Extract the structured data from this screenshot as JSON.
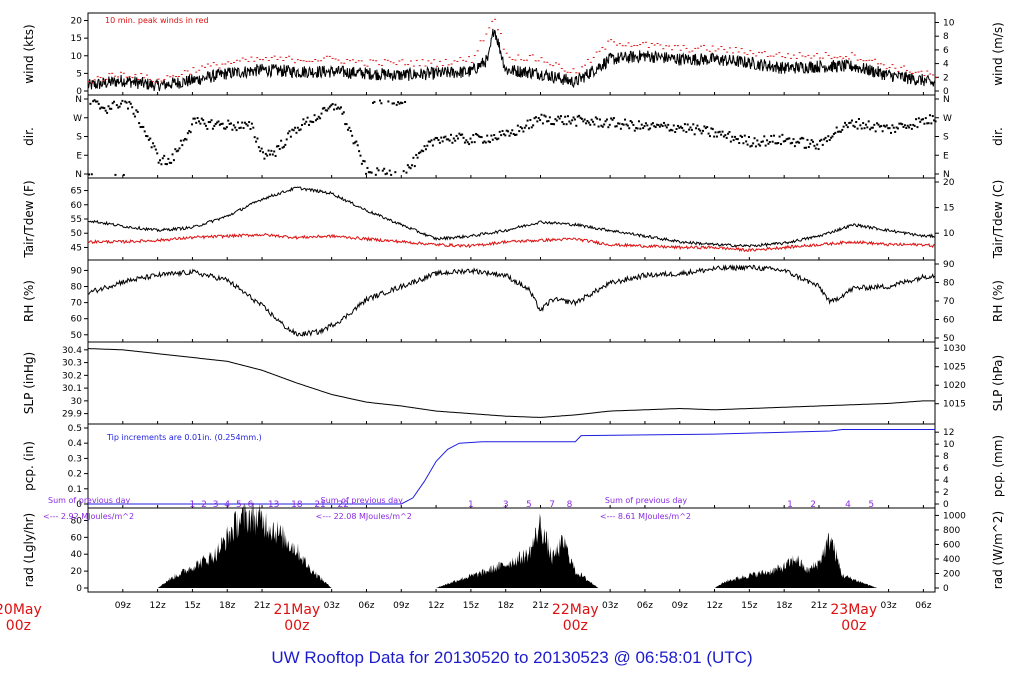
{
  "title": "UW Rooftop Data for 20130520  to  20130523 @ 06:58:01  (UTC)",
  "colors": {
    "black": "#000000",
    "red": "#dd1111",
    "blue": "#1f1fe0",
    "purple": "#8a2be2",
    "title": "#1c1ccc"
  },
  "time_axis": {
    "start": "2013-05-20 06:00",
    "end": "2013-05-23 07:00",
    "hour_ticks": [
      {
        "hour": 9,
        "label": "09z"
      },
      {
        "hour": 12,
        "label": "12z"
      },
      {
        "hour": 15,
        "label": "15z"
      },
      {
        "hour": 18,
        "label": "18z"
      },
      {
        "hour": 21,
        "label": "21z"
      },
      {
        "hour": 27,
        "label": "03z"
      },
      {
        "hour": 30,
        "label": "06z"
      },
      {
        "hour": 33,
        "label": "09z"
      },
      {
        "hour": 36,
        "label": "12z"
      },
      {
        "hour": 39,
        "label": "15z"
      },
      {
        "hour": 42,
        "label": "18z"
      },
      {
        "hour": 45,
        "label": "21z"
      },
      {
        "hour": 51,
        "label": "03z"
      },
      {
        "hour": 54,
        "label": "06z"
      },
      {
        "hour": 57,
        "label": "09z"
      },
      {
        "hour": 60,
        "label": "12z"
      },
      {
        "hour": 63,
        "label": "15z"
      },
      {
        "hour": 66,
        "label": "18z"
      },
      {
        "hour": 69,
        "label": "21z"
      },
      {
        "hour": 75,
        "label": "03z"
      },
      {
        "hour": 78,
        "label": "06z"
      }
    ],
    "day_labels": [
      {
        "hour": 0,
        "day": "20May",
        "time": "00z"
      },
      {
        "hour": 24,
        "day": "21May",
        "time": "00z"
      },
      {
        "hour": 48,
        "day": "22May",
        "time": "00z"
      },
      {
        "hour": 72,
        "day": "23May",
        "time": "00z"
      }
    ]
  },
  "chart_data": [
    {
      "type": "line",
      "panel": "wind",
      "ylabel_left": "wind (kts)",
      "ylabel_right": "wind (m/s)",
      "ylim": [
        0,
        21
      ],
      "yticks_left": [
        0,
        5,
        10,
        15,
        20
      ],
      "yticks_right": [
        0,
        2,
        4,
        6,
        8,
        10
      ],
      "annotation": "10 min. peak winds in red",
      "series": [
        {
          "role": "mean",
          "color": "#000000",
          "x_hours": [
            6,
            9,
            12,
            15,
            18,
            21,
            24,
            27,
            30,
            33,
            36,
            39,
            40.5,
            41,
            42,
            45,
            48,
            51,
            54,
            57,
            60,
            63,
            66,
            69,
            72,
            75,
            78,
            79
          ],
          "values": [
            1.5,
            3,
            1.5,
            3,
            5,
            6,
            5.5,
            5.5,
            5,
            4.5,
            5,
            5.5,
            9,
            18,
            6,
            5,
            2.5,
            9,
            10,
            9,
            9,
            8,
            6.5,
            7,
            7,
            4.5,
            3,
            2
          ]
        },
        {
          "role": "peak",
          "color": "#dd1111",
          "x_hours": [
            6,
            9,
            12,
            15,
            18,
            21,
            24,
            27,
            30,
            33,
            36,
            39,
            41,
            42,
            45,
            48,
            51,
            54,
            57,
            60,
            63,
            66,
            69,
            72,
            75,
            78,
            79
          ],
          "values": [
            3,
            5,
            3,
            6,
            8,
            9,
            9,
            9,
            8,
            8,
            8,
            9,
            21,
            10,
            9,
            5,
            14,
            13,
            12,
            12,
            11,
            10,
            10,
            10,
            7,
            5,
            4
          ]
        }
      ]
    },
    {
      "type": "scatter",
      "panel": "dir.",
      "ylabel_left": "dir.",
      "ylabel_right": "dir.",
      "ylim": [
        0,
        360
      ],
      "ytick_labels": [
        "N",
        "E",
        "S",
        "W",
        "N"
      ],
      "series": [
        {
          "color": "#000000",
          "x_hours": [
            6,
            7.5,
            9,
            10,
            12,
            13,
            15,
            18,
            20,
            21,
            22,
            24,
            26,
            27.5,
            30,
            33,
            33.5,
            36,
            39,
            42,
            45,
            48,
            51,
            54,
            57,
            60,
            63,
            66,
            69,
            70,
            72,
            75,
            78,
            79
          ],
          "values": [
            350,
            320,
            355,
            300,
            80,
            60,
            250,
            240,
            230,
            100,
            110,
            230,
            290,
            340,
            10,
            0,
            30,
            180,
            170,
            190,
            270,
            260,
            250,
            230,
            230,
            200,
            160,
            170,
            140,
            200,
            250,
            220,
            260,
            270
          ]
        }
      ]
    },
    {
      "type": "line",
      "panel": "Tair/Tdew",
      "ylabel_left": "Tair/Tdew (F)",
      "ylabel_right": "Tair/Tdew (C)",
      "ylim": [
        42,
        68
      ],
      "yticks_left": [
        45,
        50,
        55,
        60,
        65
      ],
      "yticks_right": [
        10,
        15,
        20
      ],
      "series": [
        {
          "role": "Tair",
          "color": "#000000",
          "x_hours": [
            6,
            9,
            12,
            15,
            18,
            21,
            24,
            27,
            30,
            33,
            36,
            39,
            42,
            45,
            48,
            51,
            54,
            57,
            60,
            63,
            66,
            69,
            72,
            75,
            78,
            79
          ],
          "values": [
            54.5,
            52.5,
            51,
            52,
            56,
            62,
            66,
            64,
            58,
            53,
            48,
            49,
            51,
            54,
            53,
            51,
            49,
            47,
            46,
            45.5,
            46.5,
            49,
            53,
            51,
            49,
            49
          ]
        },
        {
          "role": "Tdew",
          "color": "#dd1111",
          "x_hours": [
            6,
            9,
            12,
            15,
            18,
            21,
            24,
            27,
            30,
            33,
            36,
            39,
            42,
            45,
            48,
            51,
            54,
            57,
            60,
            63,
            66,
            69,
            72,
            75,
            78,
            79
          ],
          "values": [
            47,
            47,
            47.5,
            48.5,
            49,
            49.5,
            48.5,
            49,
            48,
            47,
            46,
            45.5,
            47,
            47.5,
            48,
            46,
            45.5,
            45,
            45,
            44,
            45,
            46,
            47,
            46,
            46,
            45.5
          ]
        }
      ]
    },
    {
      "type": "line",
      "panel": "RH",
      "ylabel_left": "RH (%)",
      "ylabel_right": "RH (%)",
      "ylim": [
        48,
        94
      ],
      "yticks_left": [
        50,
        60,
        70,
        80,
        90
      ],
      "yticks_right": [
        50,
        60,
        70,
        80,
        90
      ],
      "series": [
        {
          "color": "#000000",
          "x_hours": [
            6,
            9,
            12,
            15,
            18,
            21,
            23,
            24,
            26,
            28,
            30,
            33,
            36,
            39,
            42,
            44,
            45,
            46,
            48,
            51,
            54,
            57,
            60,
            63,
            66,
            69,
            70,
            72,
            75,
            78,
            79
          ],
          "values": [
            76,
            83,
            87,
            89,
            84,
            68,
            55,
            50,
            52,
            60,
            72,
            80,
            88,
            90,
            87,
            78,
            65,
            72,
            70,
            82,
            87,
            88,
            91,
            92,
            90,
            80,
            70,
            79,
            80,
            86,
            87
          ]
        }
      ]
    },
    {
      "type": "line",
      "panel": "SLP",
      "ylabel_left": "SLP (inHg)",
      "ylabel_right": "SLP (hPa)",
      "ylim": [
        29.85,
        30.43
      ],
      "yticks_left": [
        29.9,
        30.0,
        30.1,
        30.2,
        30.3,
        30.4
      ],
      "yticks_right": [
        1015,
        1020,
        1025,
        1030
      ],
      "series": [
        {
          "color": "#000000",
          "x_hours": [
            6,
            9,
            12,
            15,
            18,
            21,
            24,
            27,
            30,
            33,
            36,
            39,
            42,
            45,
            48,
            51,
            54,
            57,
            60,
            63,
            66,
            69,
            72,
            75,
            78,
            79
          ],
          "values": [
            30.41,
            30.4,
            30.37,
            30.34,
            30.31,
            30.24,
            30.14,
            30.05,
            29.99,
            29.96,
            29.92,
            29.9,
            29.88,
            29.87,
            29.89,
            29.92,
            29.93,
            29.94,
            29.93,
            29.94,
            29.95,
            29.96,
            29.97,
            29.98,
            30.0,
            30.0
          ]
        }
      ]
    },
    {
      "type": "line",
      "panel": "pcp.",
      "ylabel_left": "pcp. (in)",
      "ylabel_right": "pcp. (mm)",
      "ylim": [
        0,
        0.5
      ],
      "yticks_left": [
        0.0,
        0.1,
        0.2,
        0.3,
        0.4,
        0.5
      ],
      "yticks_right": [
        0,
        2,
        4,
        6,
        8,
        10,
        12
      ],
      "annotation": "Tip increments are 0.01in. (0.254mm.)",
      "series": [
        {
          "color": "#1f1fe0",
          "x_hours": [
            6,
            33,
            34,
            35,
            36,
            37,
            38,
            40,
            44,
            47,
            48,
            48.5,
            60,
            70,
            71,
            79
          ],
          "values": [
            0,
            0,
            0.04,
            0.15,
            0.28,
            0.36,
            0.4,
            0.41,
            0.41,
            0.41,
            0.41,
            0.45,
            0.46,
            0.48,
            0.49,
            0.49
          ]
        }
      ]
    },
    {
      "type": "area",
      "panel": "rad",
      "ylabel_left": "rad (Lgly/hr)",
      "ylabel_right": "rad (W/m^2)",
      "ylim": [
        0,
        90
      ],
      "yticks_left": [
        0,
        20,
        40,
        60,
        80
      ],
      "yticks_right": [
        0,
        200,
        400,
        600,
        800,
        1000
      ],
      "series": [
        {
          "color": "#000000",
          "x_hours": [
            12,
            13,
            15,
            17,
            18,
            19,
            20,
            21,
            22,
            24,
            25,
            26,
            27,
            36,
            37,
            38,
            40,
            42,
            44,
            45,
            46,
            47,
            48,
            49,
            50,
            60,
            61,
            63,
            65,
            66,
            67,
            68,
            69,
            70,
            71,
            72,
            73,
            74
          ],
          "values": [
            0,
            10,
            25,
            40,
            60,
            80,
            85,
            80,
            70,
            45,
            25,
            12,
            0,
            0,
            5,
            10,
            18,
            28,
            40,
            75,
            35,
            55,
            20,
            10,
            0,
            0,
            8,
            15,
            20,
            25,
            35,
            20,
            30,
            60,
            15,
            10,
            5,
            0
          ]
        }
      ],
      "hour_markers": [
        {
          "hour": 15,
          "label": "1"
        },
        {
          "hour": 16,
          "label": "2"
        },
        {
          "hour": 17,
          "label": "3"
        },
        {
          "hour": 18,
          "label": "4"
        },
        {
          "hour": 19,
          "label": "5"
        },
        {
          "hour": 20,
          "label": "6"
        },
        {
          "hour": 22,
          "label": "13"
        },
        {
          "hour": 24,
          "label": "18"
        },
        {
          "hour": 26,
          "label": "21"
        },
        {
          "hour": 28,
          "label": "22"
        },
        {
          "hour": 39,
          "label": "1"
        },
        {
          "hour": 42,
          "label": "3"
        },
        {
          "hour": 44,
          "label": "5"
        },
        {
          "hour": 46,
          "label": "7"
        },
        {
          "hour": 47.5,
          "label": "8"
        },
        {
          "hour": 66.5,
          "label": "1"
        },
        {
          "hour": 68.5,
          "label": "2"
        },
        {
          "hour": 71.5,
          "label": "4"
        },
        {
          "hour": 73.5,
          "label": "5"
        }
      ],
      "sum_notes": [
        {
          "hour": 6,
          "line1": "Sum of previous day",
          "line2": "<--- 2.92 MJoules/m^2"
        },
        {
          "hour": 29.5,
          "line1": "Sum of previous day",
          "line2": "<--- 22.08 MJoules/m^2"
        },
        {
          "hour": 54,
          "line1": "Sum of previous day",
          "line2": "<--- 8.61 MJoules/m^2"
        }
      ]
    }
  ]
}
